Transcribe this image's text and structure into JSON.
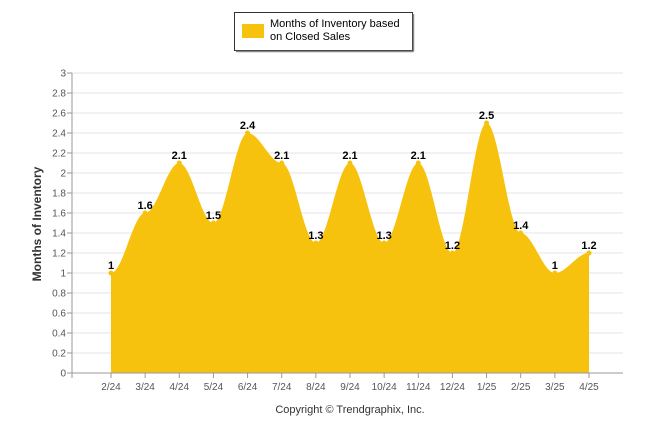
{
  "chart_data": {
    "type": "area",
    "categories": [
      "2/24",
      "3/24",
      "4/24",
      "5/24",
      "6/24",
      "7/24",
      "8/24",
      "9/24",
      "10/24",
      "11/24",
      "12/24",
      "1/25",
      "2/25",
      "3/25",
      "4/25"
    ],
    "series": [
      {
        "name": "Months of Inventory based on Closed Sales",
        "values": [
          1,
          1.6,
          2.1,
          1.5,
          2.4,
          2.1,
          1.3,
          2.1,
          1.3,
          2.1,
          1.2,
          2.5,
          1.4,
          1,
          1.2
        ],
        "color": "#f7c20d"
      }
    ],
    "data_labels": [
      "1",
      "1.6",
      "2.1",
      "1.5",
      "2.4",
      "2.1",
      "1.3",
      "2.1",
      "1.3",
      "2.1",
      "1.2",
      "2.5",
      "1.4",
      "1",
      "1.2"
    ],
    "ylabel": "Months of Inventory",
    "xlabel": "",
    "ylim": [
      0,
      3
    ],
    "yticks": [
      "0",
      "0.2",
      "0.4",
      "0.6",
      "0.8",
      "1",
      "1.2",
      "1.4",
      "1.6",
      "1.8",
      "2",
      "2.2",
      "2.4",
      "2.6",
      "2.8",
      "3"
    ],
    "grid": true,
    "legend_position": "top-center",
    "legend_text": [
      "Months of Inventory based",
      "on Closed Sales"
    ],
    "credit": "Copyright © Trendgraphix, Inc."
  }
}
